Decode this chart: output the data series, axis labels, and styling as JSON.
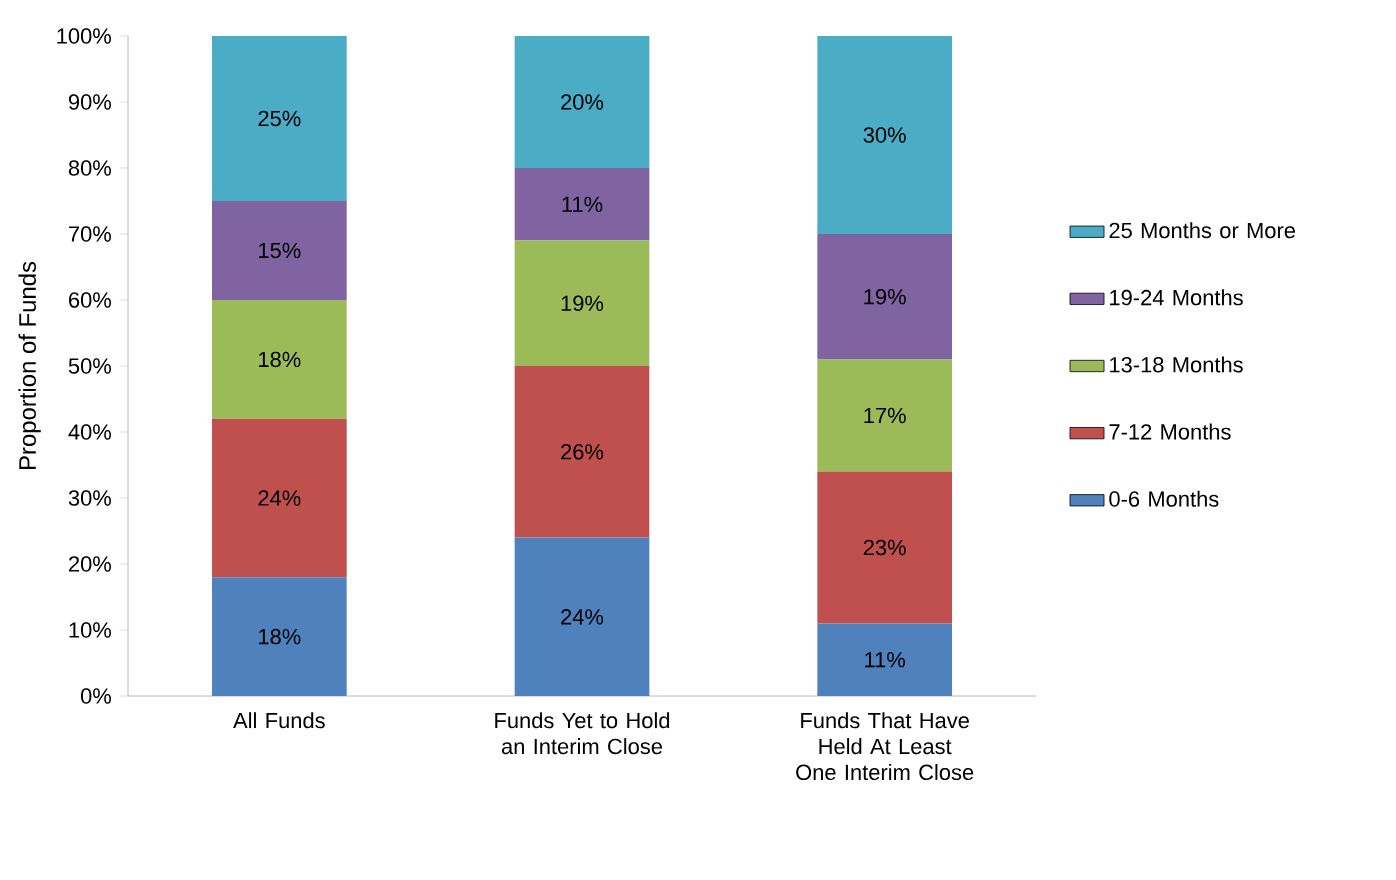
{
  "chart_data": {
    "type": "bar",
    "stacked": true,
    "ylabel": "Proportion of Funds",
    "categories": [
      "All Funds",
      "Funds Yet to Hold an Interim Close",
      "Funds That Have Held At Least One Interim Close"
    ],
    "series": [
      {
        "name": "0-6 Months",
        "color": "#4f81bd",
        "values": [
          18,
          24,
          11
        ],
        "value_labels": [
          "18%",
          "24%",
          "11%"
        ]
      },
      {
        "name": "7-12 Months",
        "color": "#c0504d",
        "values": [
          24,
          26,
          23
        ],
        "value_labels": [
          "24%",
          "26%",
          "23%"
        ]
      },
      {
        "name": "13-18 Months",
        "color": "#9bbb59",
        "values": [
          18,
          19,
          17
        ],
        "value_labels": [
          "18%",
          "19%",
          "17%"
        ]
      },
      {
        "name": "19-24 Months",
        "color": "#8064a2",
        "values": [
          15,
          11,
          19
        ],
        "value_labels": [
          "15%",
          "11%",
          "19%"
        ]
      },
      {
        "name": "25 Months or More",
        "color": "#4bacc6",
        "values": [
          25,
          20,
          30
        ],
        "value_labels": [
          "25%",
          "20%",
          "30%"
        ]
      }
    ],
    "ylim": [
      0,
      100
    ],
    "yticks": [
      {
        "value": 0,
        "label": "0%"
      },
      {
        "value": 10,
        "label": "10%"
      },
      {
        "value": 20,
        "label": "20%"
      },
      {
        "value": 30,
        "label": "30%"
      },
      {
        "value": 40,
        "label": "40%"
      },
      {
        "value": 50,
        "label": "50%"
      },
      {
        "value": 60,
        "label": "60%"
      },
      {
        "value": 70,
        "label": "70%"
      },
      {
        "value": 80,
        "label": "80%"
      },
      {
        "value": 90,
        "label": "90%"
      },
      {
        "value": 100,
        "label": "100%"
      }
    ],
    "legend": "right"
  }
}
